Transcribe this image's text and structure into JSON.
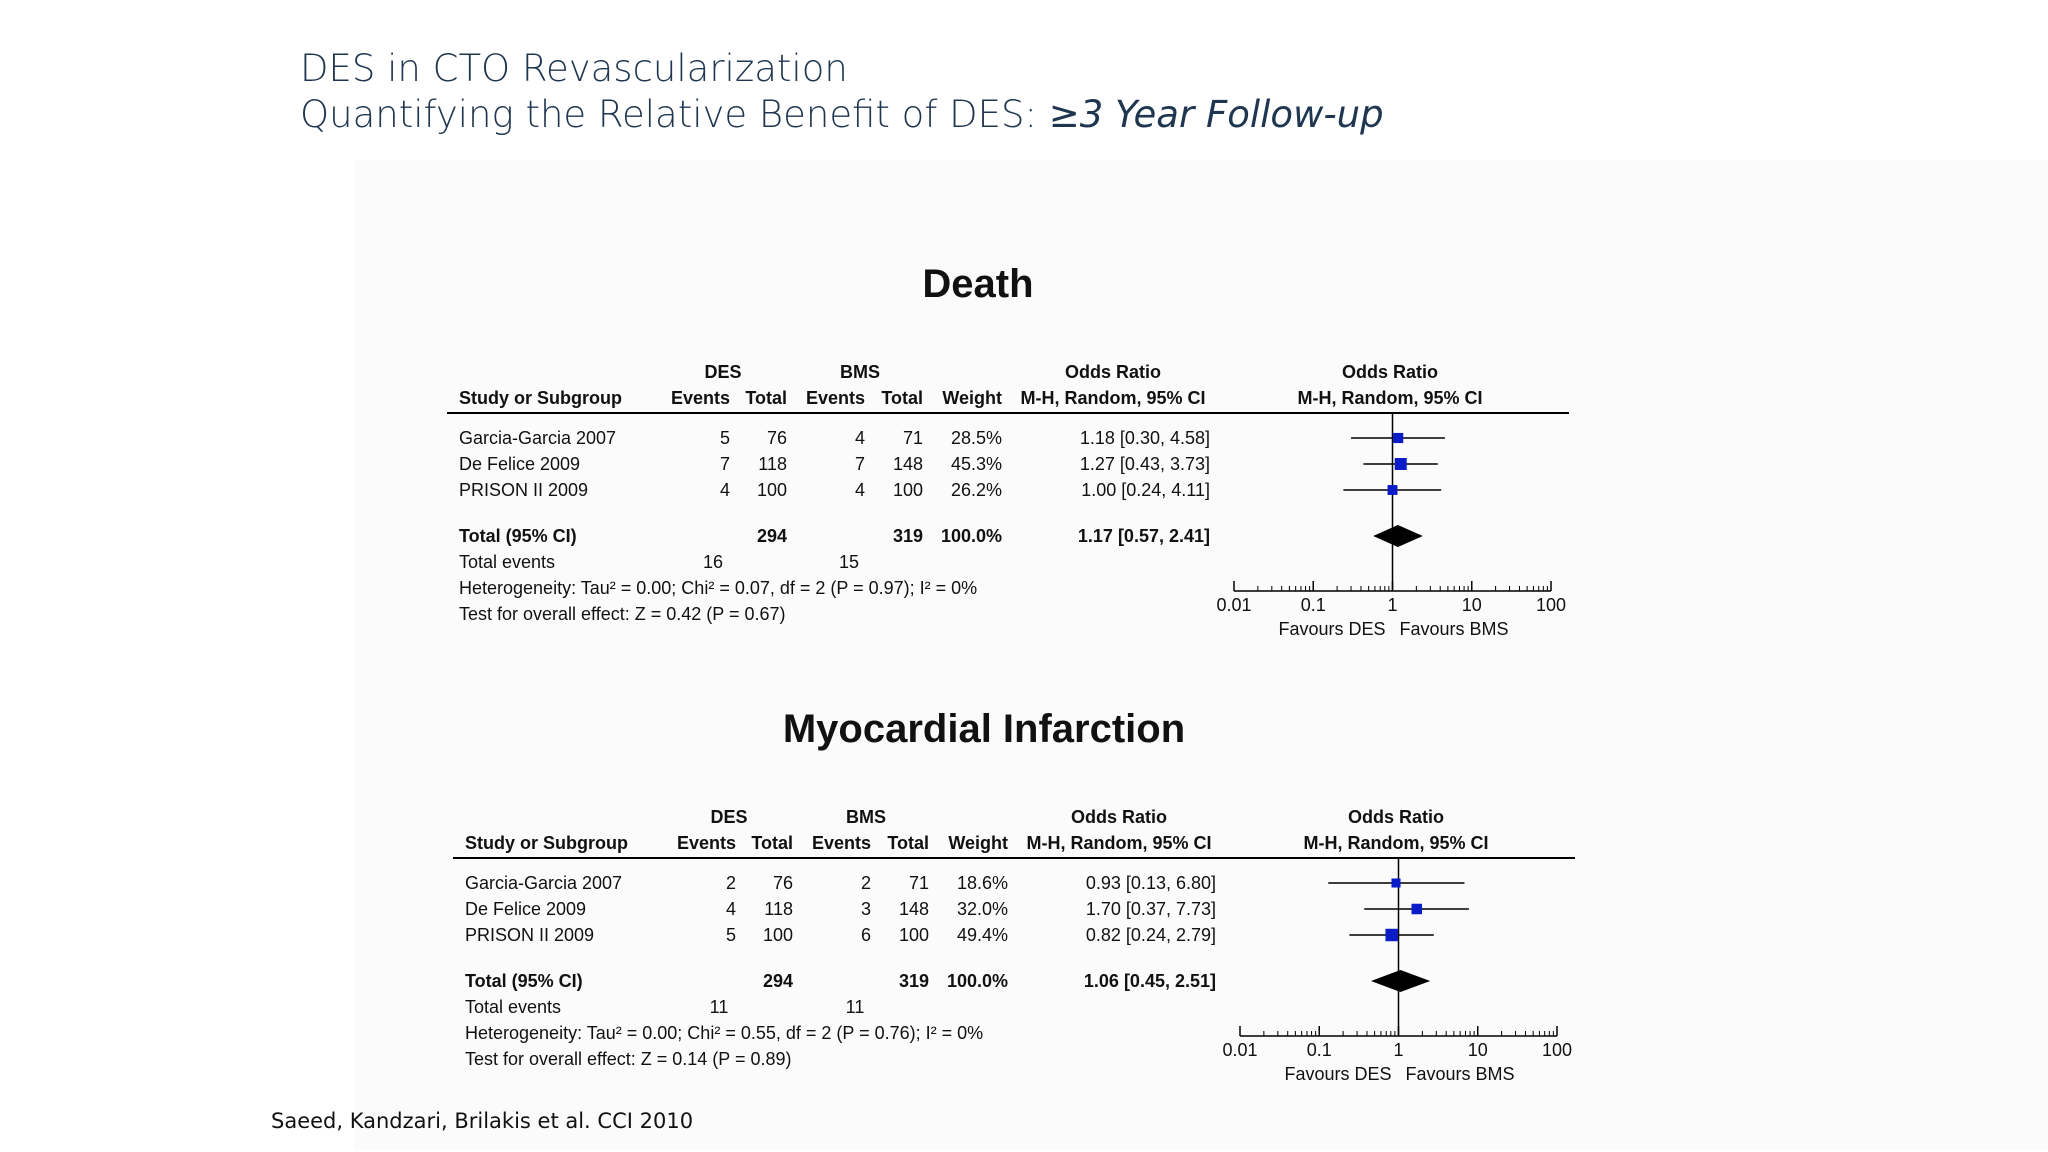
{
  "slide": {
    "title_line1": "DES in CTO Revascularization",
    "title_line2_prefix": "Quantifying the Relative Benefit of DES: ",
    "title_line2_emph": "≥3 Year Follow-up",
    "citation": "Saeed, Kandzari, Brilakis et al. CCI 2010"
  },
  "chart_data": [
    {
      "type": "table",
      "title": "Death",
      "group_headers": [
        "DES",
        "BMS",
        "Odds Ratio",
        "Odds Ratio"
      ],
      "column_headers": [
        "Study or Subgroup",
        "Events",
        "Total",
        "Events",
        "Total",
        "Weight",
        "M-H, Random, 95% CI",
        "M-H, Random, 95% CI"
      ],
      "studies": [
        {
          "name": "Garcia-Garcia 2007",
          "des_events": "5",
          "des_total": "76",
          "bms_events": "4",
          "bms_total": "71",
          "weight": "28.5%",
          "ci_text": "1.18 [0.30, 4.58]",
          "or": 1.18,
          "lo": 0.3,
          "hi": 4.58,
          "w": 28.5
        },
        {
          "name": "De Felice 2009",
          "des_events": "7",
          "des_total": "118",
          "bms_events": "7",
          "bms_total": "148",
          "weight": "45.3%",
          "ci_text": "1.27 [0.43, 3.73]",
          "or": 1.27,
          "lo": 0.43,
          "hi": 3.73,
          "w": 45.3
        },
        {
          "name": "PRISON II 2009",
          "des_events": "4",
          "des_total": "100",
          "bms_events": "4",
          "bms_total": "100",
          "weight": "26.2%",
          "ci_text": "1.00 [0.24, 4.11]",
          "or": 1.0,
          "lo": 0.24,
          "hi": 4.11,
          "w": 26.2
        }
      ],
      "total": {
        "label": "Total (95% CI)",
        "des_total": "294",
        "bms_total": "319",
        "weight": "100.0%",
        "ci_text": "1.17 [0.57, 2.41]",
        "or": 1.17,
        "lo": 0.57,
        "hi": 2.41
      },
      "total_events": {
        "label": "Total events",
        "des": "16",
        "bms": "15"
      },
      "heterogeneity": "Heterogeneity: Tau² = 0.00; Chi² = 0.07, df = 2 (P = 0.97); I² = 0%",
      "overall_effect": "Test for overall effect: Z = 0.42 (P = 0.67)",
      "axis": {
        "scale": "log",
        "ticks": [
          0.01,
          0.1,
          1,
          10,
          100
        ],
        "tick_labels": [
          "0.01",
          "0.1",
          "1",
          "10",
          "100"
        ],
        "xlim": [
          0.01,
          100
        ]
      },
      "favours_left": "Favours DES",
      "favours_right": "Favours BMS"
    },
    {
      "type": "table",
      "title": "Myocardial Infarction",
      "group_headers": [
        "DES",
        "BMS",
        "Odds Ratio",
        "Odds Ratio"
      ],
      "column_headers": [
        "Study or Subgroup",
        "Events",
        "Total",
        "Events",
        "Total",
        "Weight",
        "M-H, Random, 95% CI",
        "M-H, Random, 95% CI"
      ],
      "studies": [
        {
          "name": "Garcia-Garcia 2007",
          "des_events": "2",
          "des_total": "76",
          "bms_events": "2",
          "bms_total": "71",
          "weight": "18.6%",
          "ci_text": "0.93 [0.13, 6.80]",
          "or": 0.93,
          "lo": 0.13,
          "hi": 6.8,
          "w": 18.6
        },
        {
          "name": "De Felice 2009",
          "des_events": "4",
          "des_total": "118",
          "bms_events": "3",
          "bms_total": "148",
          "weight": "32.0%",
          "ci_text": "1.70 [0.37, 7.73]",
          "or": 1.7,
          "lo": 0.37,
          "hi": 7.73,
          "w": 32.0
        },
        {
          "name": "PRISON II 2009",
          "des_events": "5",
          "des_total": "100",
          "bms_events": "6",
          "bms_total": "100",
          "weight": "49.4%",
          "ci_text": "0.82 [0.24, 2.79]",
          "or": 0.82,
          "lo": 0.24,
          "hi": 2.79,
          "w": 49.4
        }
      ],
      "total": {
        "label": "Total (95% CI)",
        "des_total": "294",
        "bms_total": "319",
        "weight": "100.0%",
        "ci_text": "1.06 [0.45, 2.51]",
        "or": 1.06,
        "lo": 0.45,
        "hi": 2.51
      },
      "total_events": {
        "label": "Total events",
        "des": "11",
        "bms": "11"
      },
      "heterogeneity": "Heterogeneity: Tau² = 0.00; Chi² = 0.55, df = 2 (P = 0.76); I² = 0%",
      "overall_effect": "Test for overall effect: Z = 0.14 (P = 0.89)",
      "axis": {
        "scale": "log",
        "ticks": [
          0.01,
          0.1,
          1,
          10,
          100
        ],
        "tick_labels": [
          "0.01",
          "0.1",
          "1",
          "10",
          "100"
        ],
        "xlim": [
          0.01,
          100
        ]
      },
      "favours_left": "Favours DES",
      "favours_right": "Favours BMS"
    }
  ],
  "colors": {
    "marker": "#0a1bc8",
    "diamond": "#000000",
    "rule": "#000000"
  }
}
